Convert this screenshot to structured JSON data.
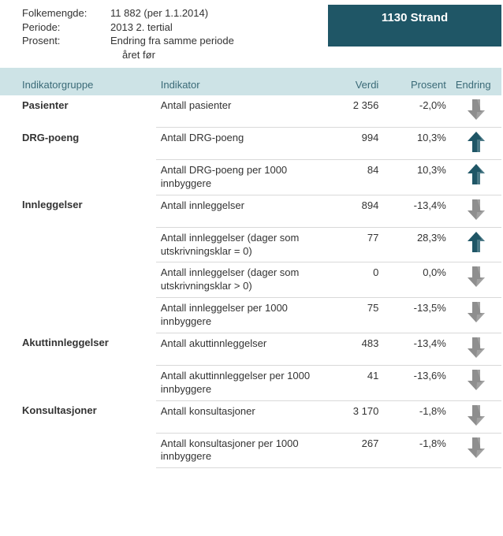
{
  "meta": {
    "labels": {
      "folkemengde": "Folkemengde:",
      "periode": "Periode:",
      "prosent": "Prosent:"
    },
    "folkemengde": "11 882 (per 1.1.2014)",
    "periode": "2013 2. tertial",
    "prosent_line1": "Endring fra samme periode",
    "prosent_line2": "året før"
  },
  "banner": "1130 Strand",
  "headers": {
    "group": "Indikatorgruppe",
    "indicator": "Indikator",
    "value": "Verdi",
    "percent": "Prosent",
    "change": "Endring"
  },
  "arrow_colors": {
    "up": {
      "fill": "#1f5666",
      "shade": "#9fbac2"
    },
    "down": {
      "fill": "#8e8e8e",
      "shade": "#c7c7c7"
    }
  },
  "groups": [
    {
      "name": "Pasienter",
      "rows": [
        {
          "indicator": "Antall pasienter",
          "value": "2 356",
          "percent": "-2,0%",
          "dir": "down"
        }
      ]
    },
    {
      "name": "DRG-poeng",
      "rows": [
        {
          "indicator": "Antall DRG-poeng",
          "value": "994",
          "percent": "10,3%",
          "dir": "up"
        },
        {
          "indicator": "Antall DRG-poeng per 1000 innbyggere",
          "value": "84",
          "percent": "10,3%",
          "dir": "up"
        }
      ]
    },
    {
      "name": "Innleggelser",
      "rows": [
        {
          "indicator": "Antall innleggelser",
          "value": "894",
          "percent": "-13,4%",
          "dir": "down"
        },
        {
          "indicator": "Antall innleggelser (dager som utskrivningsklar = 0)",
          "value": "77",
          "percent": "28,3%",
          "dir": "up"
        },
        {
          "indicator": "Antall innleggelser (dager som utskrivningsklar > 0)",
          "value": "0",
          "percent": "0,0%",
          "dir": "down"
        },
        {
          "indicator": "Antall innleggelser per 1000 innbyggere",
          "value": "75",
          "percent": "-13,5%",
          "dir": "down"
        }
      ]
    },
    {
      "name": "Akuttinnleggelser",
      "rows": [
        {
          "indicator": "Antall akuttinnleggelser",
          "value": "483",
          "percent": "-13,4%",
          "dir": "down"
        },
        {
          "indicator": "Antall akuttinnleggelser per 1000 innbyggere",
          "value": "41",
          "percent": "-13,6%",
          "dir": "down"
        }
      ]
    },
    {
      "name": "Konsultasjoner",
      "rows": [
        {
          "indicator": "Antall konsultasjoner",
          "value": "3 170",
          "percent": "-1,8%",
          "dir": "down"
        },
        {
          "indicator": "Antall konsultasjoner per 1000 innbyggere",
          "value": "267",
          "percent": "-1,8%",
          "dir": "down"
        }
      ]
    }
  ]
}
